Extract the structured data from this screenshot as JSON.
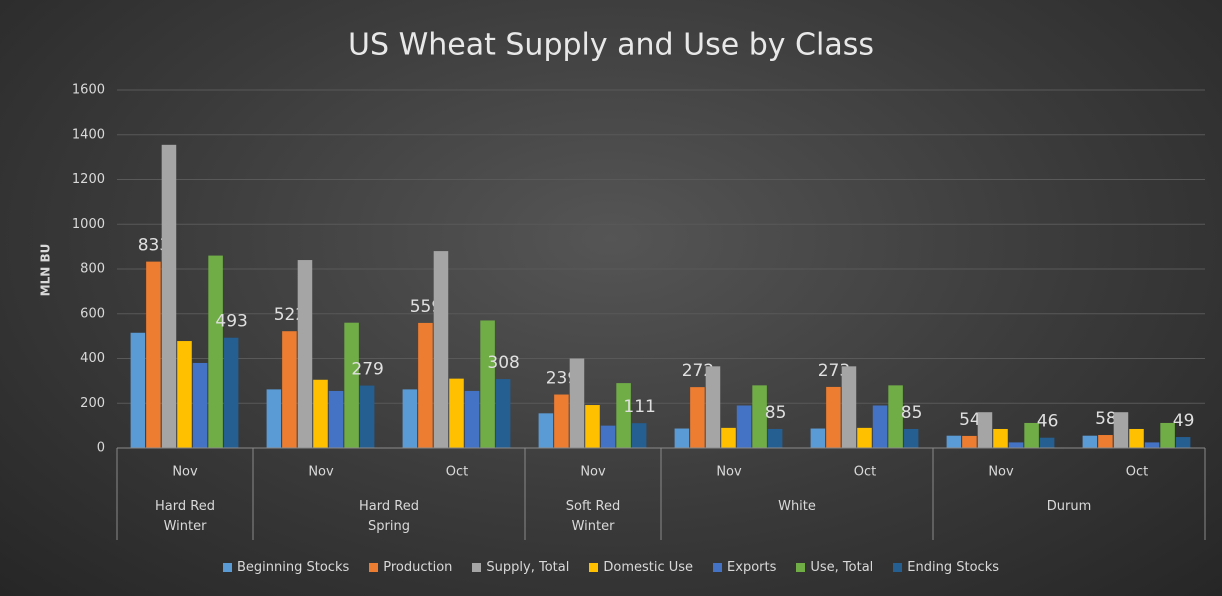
{
  "chart_data": {
    "type": "bar",
    "title": "US Wheat Supply and Use by Class",
    "y_label": "MLN BU",
    "categories": [
      "Nov",
      "Nov",
      "Oct",
      "Nov",
      "Nov",
      "Oct",
      "Nov",
      "Oct"
    ],
    "category_groups": [
      {
        "label": "Hard Red Winter",
        "size": 1
      },
      {
        "label": "Hard Red Spring",
        "size": 2
      },
      {
        "label": "Soft Red Winter",
        "size": 1
      },
      {
        "label": "White",
        "size": 2
      },
      {
        "label": "Durum",
        "size": 2
      }
    ],
    "series": [
      {
        "name": "Beginning Stocks",
        "color": "#5b9bd5",
        "values": [
          515,
          262,
          262,
          155,
          87,
          87,
          55,
          55
        ]
      },
      {
        "name": "Production",
        "color": "#ed7d31",
        "values": [
          833,
          522,
          559,
          239,
          272,
          273,
          54,
          58
        ],
        "data_labels": true
      },
      {
        "name": "Supply, Total",
        "color": "#a5a5a5",
        "values": [
          1355,
          840,
          880,
          400,
          365,
          365,
          160,
          160
        ]
      },
      {
        "name": "Domestic Use",
        "color": "#ffc000",
        "values": [
          478,
          305,
          310,
          192,
          90,
          90,
          85,
          85
        ]
      },
      {
        "name": "Exports",
        "color": "#4472c4",
        "values": [
          380,
          255,
          255,
          100,
          190,
          190,
          25,
          25
        ]
      },
      {
        "name": "Use, Total",
        "color": "#70ad47",
        "values": [
          860,
          560,
          570,
          290,
          280,
          280,
          112,
          112
        ]
      },
      {
        "name": "Ending Stocks",
        "color": "#255e91",
        "values": [
          493,
          279,
          308,
          111,
          85,
          85,
          46,
          49
        ],
        "data_labels": true
      }
    ],
    "ylim": [
      0,
      1600
    ],
    "yticks": [
      0,
      200,
      400,
      600,
      800,
      1000,
      1200,
      1400,
      1600
    ],
    "grid": true,
    "legend": "bottom"
  }
}
